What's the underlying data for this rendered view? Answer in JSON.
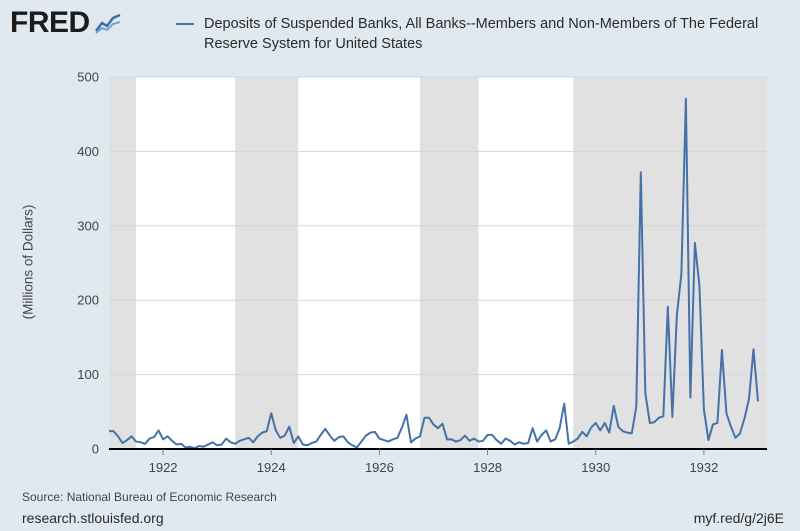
{
  "brand": {
    "logo_text": "FRED",
    "logo_icon": "fred-chart-mark-icon"
  },
  "colors": {
    "line": "#4572a7",
    "plot_bg": "#ffffff",
    "recession": "#e1e1e1",
    "page_bg": "#e1e9f0"
  },
  "footer": {
    "source": "Source: National Bureau of Economic Research",
    "site": "research.stlouisfed.org",
    "shortlink": "myf.red/g/2j6E"
  },
  "chart_data": {
    "type": "line",
    "title": "",
    "series": [
      {
        "name": "Deposits of Suspended Banks, All Banks--Members and Non-Members of The Federal Reserve System for United States",
        "x_start": "1921-01",
        "frequency": "monthly",
        "values": [
          24,
          24,
          17,
          8,
          12,
          17,
          10,
          9,
          7,
          14,
          16,
          25,
          13,
          17,
          11,
          6,
          7,
          2,
          3,
          1,
          4,
          3,
          6,
          9,
          5,
          6,
          14,
          9,
          7,
          11,
          13,
          15,
          9,
          17,
          22,
          24,
          48,
          25,
          15,
          18,
          30,
          8,
          17,
          6,
          5,
          8,
          10,
          19,
          27,
          18,
          11,
          16,
          17,
          9,
          5,
          2,
          10,
          18,
          22,
          23,
          14,
          12,
          10,
          13,
          15,
          29,
          46,
          9,
          14,
          17,
          42,
          42,
          33,
          28,
          34,
          13,
          13,
          10,
          12,
          18,
          11,
          14,
          10,
          11,
          19,
          19,
          12,
          7,
          14,
          11,
          6,
          9,
          7,
          8,
          28,
          10,
          19,
          25,
          10,
          13,
          28,
          61,
          7,
          10,
          14,
          23,
          17,
          29,
          35,
          25,
          35,
          22,
          58,
          30,
          24,
          22,
          21,
          57,
          372,
          75,
          35,
          36,
          42,
          44,
          191,
          43,
          180,
          235,
          471,
          69,
          277,
          220,
          53,
          12,
          33,
          35,
          133,
          48,
          30,
          15,
          21,
          41,
          67,
          134,
          64
        ]
      }
    ],
    "ylabel": "(Millions of Dollars)",
    "xlabel": "",
    "ylim": [
      0,
      500
    ],
    "yticks": [
      0,
      100,
      200,
      300,
      400,
      500
    ],
    "xlim": [
      "1921-01",
      "1933-03"
    ],
    "xticks": [
      "1922",
      "1924",
      "1926",
      "1928",
      "1930",
      "1932"
    ],
    "recessions": [
      [
        "1921-01",
        "1921-07"
      ],
      [
        "1923-05",
        "1924-07"
      ],
      [
        "1926-10",
        "1927-11"
      ],
      [
        "1929-08",
        "1933-03"
      ]
    ],
    "grid": "horizontal",
    "legend": "top"
  }
}
